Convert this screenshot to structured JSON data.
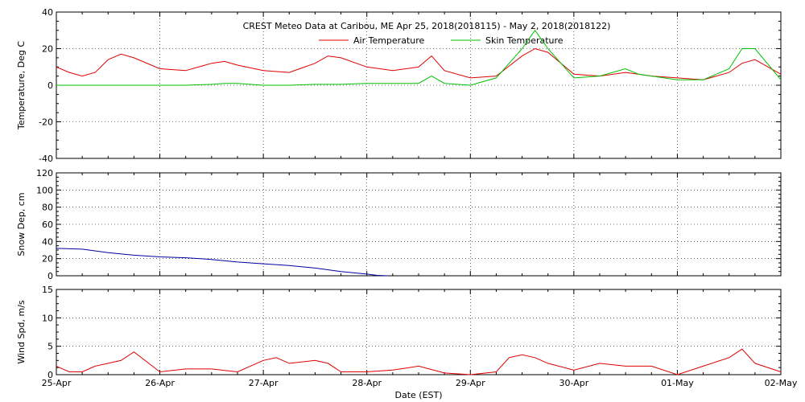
{
  "title": "CREST Meteo Data at Caribou, ME   Apr 25, 2018(2018115) - May  2, 2018(2018122)",
  "xlabel": "Date (EST)",
  "x_ticks": [
    "25-Apr",
    "26-Apr",
    "27-Apr",
    "28-Apr",
    "29-Apr",
    "30-Apr",
    "01-May",
    "02-May"
  ],
  "colors": {
    "air": "#e00000",
    "skin": "#00c000",
    "snow": "#0000a0",
    "wind": "#e00000",
    "axes": "#000000"
  },
  "chart_data": [
    {
      "type": "line",
      "ylabel": "Temperature, Deg C",
      "ylim": [
        -40,
        40
      ],
      "y_ticks": [
        "-40",
        "-20",
        "0",
        "20",
        "40"
      ],
      "grid": true,
      "legend": "top-center",
      "x_unit": "days since 25-Apr 00:00 EST",
      "x": [
        0,
        0.125,
        0.25,
        0.375,
        0.5,
        0.625,
        0.75,
        1,
        1.25,
        1.5,
        1.625,
        1.75,
        2,
        2.25,
        2.5,
        2.625,
        2.75,
        3,
        3.25,
        3.5,
        3.625,
        3.75,
        4,
        4.25,
        4.5,
        4.625,
        4.75,
        5,
        5.25,
        5.5,
        5.625,
        5.75,
        6,
        6.25,
        6.5,
        6.625,
        6.75,
        7
      ],
      "series": [
        {
          "name": "Air Temperature",
          "values": [
            10,
            7,
            5,
            7,
            14,
            17,
            15,
            9,
            8,
            12,
            13,
            11,
            8,
            7,
            12,
            16,
            15,
            10,
            8,
            10,
            16,
            8,
            4,
            5,
            16,
            20,
            18,
            6,
            5,
            7,
            6,
            5,
            4,
            3,
            7,
            12,
            14,
            6
          ]
        },
        {
          "name": "Skin Temperature",
          "values": [
            0,
            0,
            0,
            0,
            0,
            0,
            0,
            0,
            0,
            0.5,
            1,
            1,
            0,
            0,
            0.5,
            0.5,
            0.5,
            1,
            1,
            1,
            5,
            1,
            0,
            4,
            20,
            30,
            20,
            4,
            5,
            9,
            6,
            5,
            3,
            3,
            9,
            20,
            20,
            3
          ]
        }
      ]
    },
    {
      "type": "line",
      "ylabel": "Snow Dep, cm",
      "ylim": [
        0,
        120
      ],
      "y_ticks": [
        "0",
        "20",
        "40",
        "60",
        "80",
        "100",
        "120"
      ],
      "grid": true,
      "x_unit": "days since 25-Apr 00:00 EST",
      "x": [
        0,
        0.25,
        0.5,
        0.75,
        1,
        1.25,
        1.5,
        1.75,
        2,
        2.25,
        2.5,
        2.75,
        3,
        3.1,
        3.2
      ],
      "series": [
        {
          "values": [
            32,
            31,
            27,
            24,
            22,
            21,
            19,
            16,
            14,
            12,
            9,
            5,
            2,
            0.5,
            0
          ]
        }
      ]
    },
    {
      "type": "line",
      "ylabel": "Wind Spd, m/s",
      "ylim": [
        0,
        15
      ],
      "y_ticks": [
        "0",
        "5",
        "10",
        "15"
      ],
      "grid": true,
      "x_unit": "days since 25-Apr 00:00 EST",
      "x": [
        0,
        0.125,
        0.25,
        0.375,
        0.5,
        0.625,
        0.75,
        1,
        1.25,
        1.5,
        1.75,
        2,
        2.125,
        2.25,
        2.5,
        2.625,
        2.75,
        3,
        3.25,
        3.5,
        3.75,
        4,
        4.25,
        4.375,
        4.5,
        4.625,
        4.75,
        5,
        5.25,
        5.5,
        5.75,
        6,
        6.25,
        6.5,
        6.625,
        6.75,
        7
      ],
      "series": [
        {
          "values": [
            1.5,
            0.5,
            0.5,
            1.5,
            2,
            2.5,
            4,
            0.5,
            1,
            1,
            0.5,
            2.5,
            3,
            2,
            2.5,
            2,
            0.5,
            0.5,
            0.8,
            1.5,
            0.3,
            0,
            0.5,
            3,
            3.5,
            3,
            2,
            0.8,
            2,
            1.5,
            1.5,
            0,
            1.5,
            3,
            4.5,
            2,
            0.5
          ]
        }
      ]
    }
  ]
}
